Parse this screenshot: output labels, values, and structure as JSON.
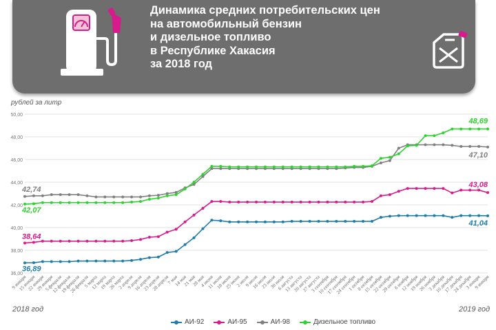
{
  "header": {
    "title_lines": [
      "Динамика средних потребительских цен",
      "на автомобильный бензин",
      "и дизельное топливо",
      "в Республике Хакасия",
      "за 2018 год"
    ]
  },
  "colors": {
    "banner": "#6e6e6e",
    "ai92": "#1f7ba8",
    "ai95": "#d81b8c",
    "ai98": "#7f7f7f",
    "diesel": "#2ed12e"
  },
  "chart_data": {
    "type": "line",
    "title": "Динамика средних потребительских цен на автомобильный бензин и дизельное топливо в Республике Хакасия за 2018 год",
    "ylabel": "рублей за литр",
    "ylim": [
      36,
      50
    ],
    "yticks": [
      "36,00",
      "38,00",
      "40,00",
      "42,00",
      "44,00",
      "46,00",
      "48,00",
      "50,00"
    ],
    "grid": true,
    "period_start_label": "2018 год",
    "period_end_label": "2019 год",
    "categories": [
      "9 января",
      "15 января",
      "22 января",
      "29 января",
      "5 февраля",
      "12 февраля",
      "19 февраля",
      "26 февраля",
      "5 марта",
      "12 марта",
      "19 марта",
      "26 марта",
      "2 апреля",
      "9 апреля",
      "16 апреля",
      "23 апреля",
      "28 апреля",
      "7 мая",
      "14 мая",
      "21 мая",
      "28 мая",
      "4 июня",
      "11 июня",
      "18 июня",
      "25 июня",
      "2 июля",
      "9 июля",
      "16 июля",
      "23 июля",
      "30 июля",
      "6 августа",
      "13 августа",
      "20 августа",
      "27 августа",
      "3 сентября",
      "10 сентября",
      "17 сентября",
      "24 сентября",
      "1 октября",
      "8 октября",
      "15 октября",
      "22 октября",
      "29 октября",
      "6 ноября",
      "12 ноября",
      "19 ноября",
      "26 ноября",
      "3 декабря",
      "10 декабря",
      "17 декабря",
      "24 декабря",
      "3 января",
      "9 января"
    ],
    "series": [
      {
        "name": "АИ-92",
        "color_key": "ai92",
        "first_label": "36,89",
        "last_label": "41,04",
        "values": [
          36.89,
          36.9,
          37.0,
          37.0,
          37.0,
          37.0,
          37.05,
          37.05,
          37.05,
          37.05,
          37.05,
          37.05,
          37.1,
          37.2,
          37.35,
          37.4,
          37.8,
          37.9,
          38.5,
          39.1,
          39.9,
          40.65,
          40.6,
          40.5,
          40.5,
          40.5,
          40.5,
          40.5,
          40.5,
          40.5,
          40.55,
          40.55,
          40.55,
          40.55,
          40.55,
          40.55,
          40.55,
          40.55,
          40.55,
          40.55,
          40.9,
          41.0,
          41.05,
          41.05,
          41.05,
          41.05,
          41.05,
          41.05,
          40.9,
          41.05,
          41.05,
          41.05,
          41.04
        ]
      },
      {
        "name": "АИ-95",
        "color_key": "ai95",
        "first_label": "38,64",
        "last_label": "43,08",
        "values": [
          38.64,
          38.7,
          38.8,
          38.8,
          38.8,
          38.8,
          38.8,
          38.8,
          38.8,
          38.8,
          38.8,
          38.8,
          38.85,
          38.95,
          39.15,
          39.2,
          39.6,
          39.85,
          40.5,
          41.1,
          41.7,
          42.3,
          42.3,
          42.25,
          42.25,
          42.25,
          42.25,
          42.25,
          42.25,
          42.25,
          42.25,
          42.25,
          42.25,
          42.25,
          42.25,
          42.25,
          42.25,
          42.25,
          42.25,
          42.3,
          42.8,
          42.9,
          43.2,
          43.45,
          43.45,
          43.45,
          43.45,
          43.45,
          43.05,
          43.3,
          43.3,
          43.3,
          43.08
        ]
      },
      {
        "name": "АИ-98",
        "color_key": "ai98",
        "first_label": "42,74",
        "last_label": "47,10",
        "values": [
          42.74,
          42.8,
          42.8,
          42.9,
          42.9,
          42.9,
          42.9,
          42.8,
          42.7,
          42.7,
          42.7,
          42.7,
          42.7,
          42.7,
          42.8,
          42.85,
          43.0,
          43.1,
          43.5,
          43.8,
          44.5,
          45.2,
          45.2,
          45.2,
          45.2,
          45.2,
          45.2,
          45.2,
          45.2,
          45.2,
          45.2,
          45.2,
          45.2,
          45.2,
          45.2,
          45.2,
          45.25,
          45.3,
          45.3,
          45.4,
          45.7,
          45.9,
          47.0,
          47.3,
          47.3,
          47.3,
          47.3,
          47.3,
          47.25,
          47.15,
          47.15,
          47.15,
          47.1
        ]
      },
      {
        "name": "Дизельное топливо",
        "color_key": "diesel",
        "first_label": "42,07",
        "last_label": "48,69",
        "values": [
          42.07,
          42.1,
          42.2,
          42.2,
          42.2,
          42.2,
          42.2,
          42.2,
          42.2,
          42.2,
          42.2,
          42.2,
          42.25,
          42.3,
          42.5,
          42.6,
          42.8,
          42.9,
          43.4,
          44.0,
          44.7,
          45.4,
          45.4,
          45.35,
          45.35,
          45.35,
          45.35,
          45.35,
          45.35,
          45.35,
          45.35,
          45.35,
          45.35,
          45.35,
          45.35,
          45.35,
          45.35,
          45.4,
          45.4,
          45.45,
          46.1,
          46.2,
          46.5,
          47.2,
          47.25,
          48.1,
          48.1,
          48.35,
          48.69,
          48.69,
          48.69,
          48.69,
          48.69
        ]
      }
    ]
  }
}
